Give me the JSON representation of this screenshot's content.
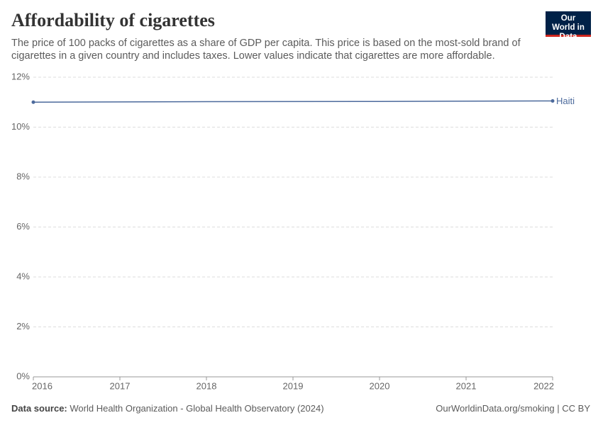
{
  "chart_data": {
    "type": "line",
    "title": "Affordability of cigarettes",
    "subtitle": "The price of 100 packs of cigarettes as a share of GDP per capita. This price is based on the most-sold brand of cigarettes in a given country and includes taxes. Lower values indicate that cigarettes are more affordable.",
    "x": [
      2016,
      2018,
      2020,
      2022
    ],
    "series": [
      {
        "name": "Haiti",
        "color": "#4c6a9c",
        "values": [
          11.0,
          11.02,
          11.03,
          11.05
        ]
      }
    ],
    "xlim": [
      2016,
      2022
    ],
    "xticks": [
      2016,
      2017,
      2018,
      2019,
      2020,
      2021,
      2022
    ],
    "ylim": [
      0,
      12
    ],
    "yticks": [
      {
        "value": 0,
        "label": "0%"
      },
      {
        "value": 2,
        "label": "2%"
      },
      {
        "value": 4,
        "label": "4%"
      },
      {
        "value": 6,
        "label": "6%"
      },
      {
        "value": 8,
        "label": "8%"
      },
      {
        "value": 10,
        "label": "10%"
      },
      {
        "value": 12,
        "label": "12%"
      }
    ],
    "grid": true,
    "source_label": "Data source:",
    "source": "World Health Organization - Global Health Observatory (2024)",
    "credit": "OurWorldinData.org/smoking | CC BY",
    "logo": "Our World in Data"
  }
}
